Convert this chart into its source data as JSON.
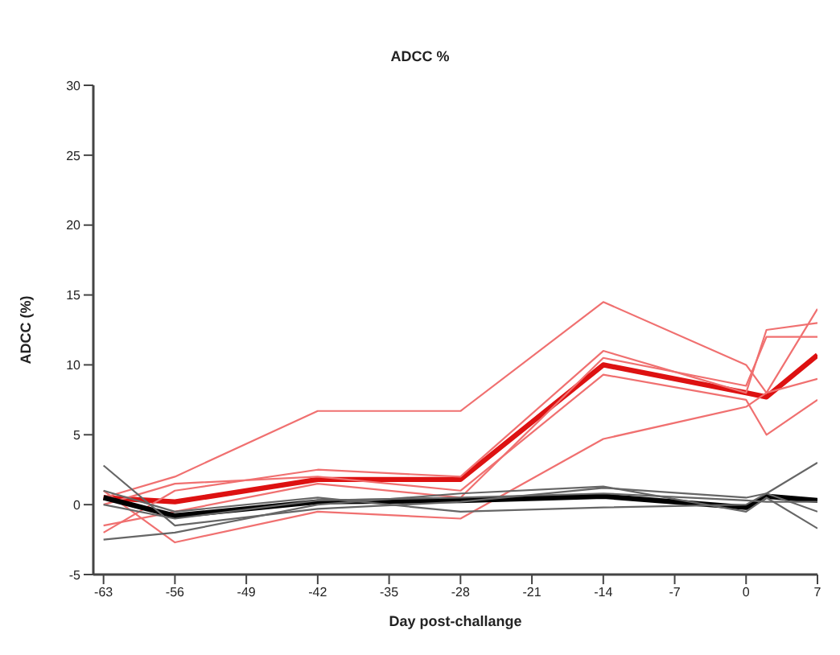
{
  "chart_data": {
    "type": "line",
    "title": "ADCC %",
    "xlabel": "Day post-challange",
    "ylabel": "ADCC (%)",
    "x": [
      -63,
      -56,
      -42,
      -28,
      -14,
      0,
      2,
      7
    ],
    "xlim": [
      -64,
      7
    ],
    "xticks": [
      -63,
      -56,
      -49,
      -42,
      -35,
      -28,
      -21,
      -14,
      -7,
      0,
      7
    ],
    "ylim": [
      -5,
      30
    ],
    "yticks": [
      -5,
      0,
      5,
      10,
      15,
      20,
      25,
      30
    ],
    "grid": false,
    "marker": "none",
    "line_style": "solid",
    "series": [
      {
        "color": "#dd1111",
        "values": [
          0.5,
          0.2,
          1.8,
          1.8,
          10,
          8,
          7.7,
          10.7
        ]
      },
      {
        "color": "#f07070",
        "values": [
          0.5,
          2,
          6.7,
          6.7,
          14.5,
          10,
          8,
          14
        ]
      },
      {
        "color": "#f07070",
        "values": [
          -2,
          1,
          2.5,
          2,
          11,
          8,
          12.5,
          13
        ]
      },
      {
        "color": "#f07070",
        "values": [
          1,
          -2.7,
          -0.5,
          -1,
          4.7,
          7,
          8,
          9
        ]
      },
      {
        "color": "#f07070",
        "values": [
          0,
          1.5,
          2,
          1,
          9.3,
          7.5,
          5,
          7.5
        ]
      },
      {
        "color": "#f07070",
        "values": [
          -1.5,
          -0.5,
          1.5,
          0.5,
          10.5,
          8.5,
          12,
          12
        ]
      },
      {
        "color": "#000000",
        "values": [
          0.5,
          -0.8,
          0.2,
          0.3,
          0.6,
          -0.2,
          0.6,
          0.3
        ]
      },
      {
        "color": "#666666",
        "values": [
          2.8,
          -1.5,
          -0.3,
          0.2,
          1.2,
          0.5,
          0.8,
          3
        ]
      },
      {
        "color": "#666666",
        "values": [
          -2.5,
          -2,
          0,
          0.8,
          1.3,
          -0.5,
          0.5,
          -1.7
        ]
      },
      {
        "color": "#666666",
        "values": [
          1,
          -0.5,
          0.5,
          -0.5,
          -0.2,
          0,
          0.8,
          -0.5
        ]
      },
      {
        "color": "#666666",
        "values": [
          0,
          -1,
          0.3,
          0.5,
          0.8,
          0.3,
          0.2,
          0.2
        ]
      }
    ]
  }
}
